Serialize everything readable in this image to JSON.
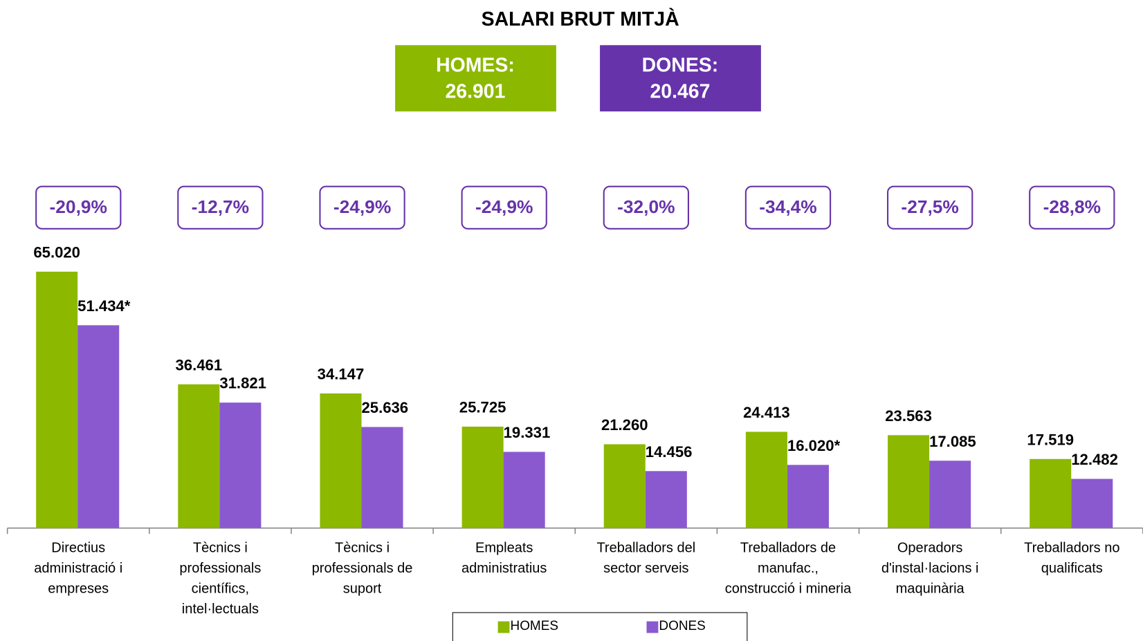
{
  "chart_data": {
    "type": "bar",
    "title": "SALARI BRUT MITJÀ",
    "summary": [
      {
        "label": "HOMES:",
        "value": 26901,
        "value_label": "26.901",
        "color": "#8cb800"
      },
      {
        "label": "DONES:",
        "value": 20467,
        "value_label": "20.467",
        "color": "#6633aa"
      }
    ],
    "categories": [
      "Directius\nadministració i\nempreses",
      "Tècnics i\nprofessionals\ncientífics,\nintel·lectuals",
      "Tècnics i\nprofessionals de\nsuport",
      "Empleats\nadministratius",
      "Treballadors del\nsector serveis",
      "Treballadors de\nmanufac.,\nconstrucció i mineria",
      "Operadors\nd'instal·lacions i\nmaquinària",
      "Treballadors no\nqualificats"
    ],
    "series": [
      {
        "name": "HOMES",
        "color": "#8cb800",
        "values": [
          65020,
          36461,
          34147,
          25725,
          21260,
          24413,
          23563,
          17519
        ],
        "value_labels": [
          "65.020",
          "36.461",
          "34.147",
          "25.725",
          "21.260",
          "24.413",
          "23.563",
          "17.519"
        ]
      },
      {
        "name": "DONES",
        "color": "#8a59d0",
        "values": [
          51434,
          31821,
          25636,
          19331,
          14456,
          16020,
          17085,
          12482
        ],
        "value_labels": [
          "51.434*",
          "31.821",
          "25.636",
          "19.331",
          "14.456",
          "16.020*",
          "17.085",
          "12.482"
        ]
      }
    ],
    "gaps": [
      -20.9,
      -12.7,
      -24.9,
      -24.9,
      -32.0,
      -34.4,
      -27.5,
      -28.8
    ],
    "gap_labels": [
      "-20,9%",
      "-12,7%",
      "-24,9%",
      "-24,9%",
      "-32,0%",
      "-34,4%",
      "-27,5%",
      "-28,8%"
    ],
    "gap_color": "#6633aa",
    "ylim": [
      0,
      70000
    ]
  }
}
